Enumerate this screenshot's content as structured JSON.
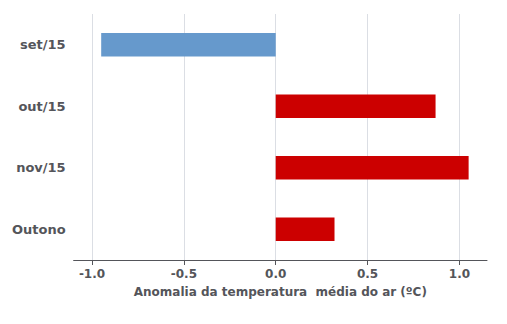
{
  "chart_data": {
    "type": "bar",
    "orientation": "horizontal",
    "categories": [
      "set/15",
      "out/15",
      "nov/15",
      "Outono"
    ],
    "values": [
      -0.95,
      0.87,
      1.05,
      0.32
    ],
    "colors": [
      "#6699cc",
      "#cc0000",
      "#cc0000",
      "#cc0000"
    ],
    "xlabel": "Anomalia da temperatura  média do ar (ºC)",
    "xlim": [
      -1.1,
      1.15
    ],
    "xticks": [
      {
        "value": -1.0,
        "label": "-1.0"
      },
      -0.5,
      {
        "value": 0.0,
        "label": "0.0"
      },
      0.5,
      {
        "value": 1.0,
        "label": "1.0"
      }
    ],
    "grid": true
  }
}
